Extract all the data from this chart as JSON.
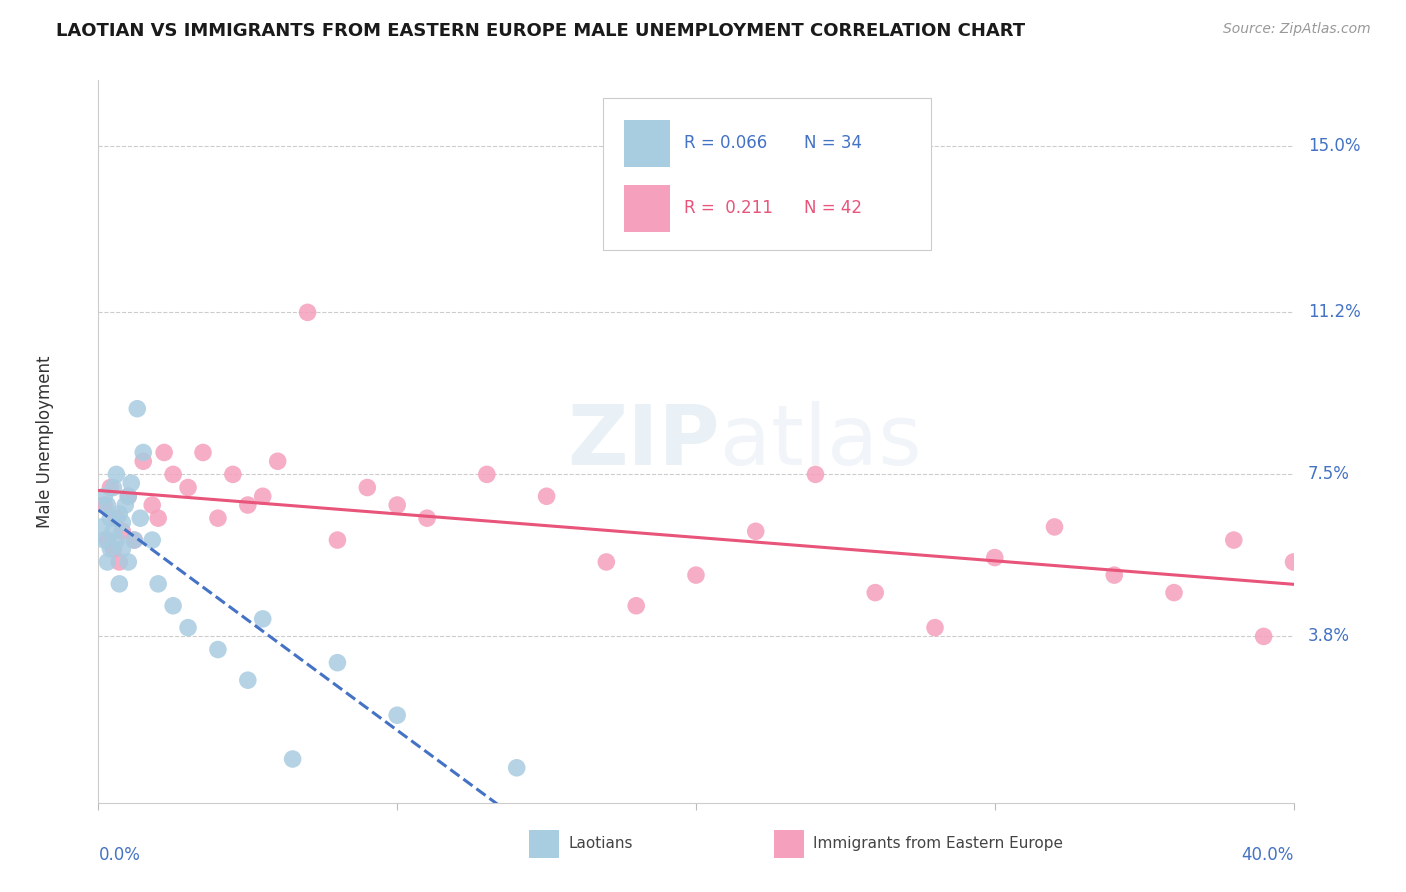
{
  "title": "LAOTIAN VS IMMIGRANTS FROM EASTERN EUROPE MALE UNEMPLOYMENT CORRELATION CHART",
  "source": "Source: ZipAtlas.com",
  "ylabel": "Male Unemployment",
  "ytick_labels": [
    "15.0%",
    "11.2%",
    "7.5%",
    "3.8%"
  ],
  "ytick_values": [
    0.15,
    0.112,
    0.075,
    0.038
  ],
  "xmin": 0.0,
  "xmax": 0.4,
  "ymin": 0.0,
  "ymax": 0.165,
  "legend_r1": "R = 0.066",
  "legend_n1": "N = 34",
  "legend_r2": "R =  0.211",
  "legend_n2": "N = 42",
  "color_blue": "#a8cce0",
  "color_pink": "#f5a0bc",
  "line_blue": "#4472c4",
  "line_pink": "#e8547a",
  "watermark_color": "#dce8f0",
  "laotian_x": [
    0.001,
    0.002,
    0.002,
    0.003,
    0.003,
    0.004,
    0.004,
    0.005,
    0.005,
    0.006,
    0.006,
    0.007,
    0.007,
    0.008,
    0.008,
    0.009,
    0.01,
    0.01,
    0.011,
    0.012,
    0.013,
    0.014,
    0.015,
    0.018,
    0.02,
    0.025,
    0.03,
    0.04,
    0.05,
    0.055,
    0.065,
    0.08,
    0.1,
    0.14
  ],
  "laotian_y": [
    0.063,
    0.07,
    0.06,
    0.068,
    0.055,
    0.065,
    0.058,
    0.072,
    0.062,
    0.075,
    0.06,
    0.066,
    0.05,
    0.058,
    0.064,
    0.068,
    0.07,
    0.055,
    0.073,
    0.06,
    0.09,
    0.065,
    0.08,
    0.06,
    0.05,
    0.045,
    0.04,
    0.035,
    0.028,
    0.042,
    0.01,
    0.032,
    0.02,
    0.008
  ],
  "eastern_x": [
    0.002,
    0.003,
    0.004,
    0.005,
    0.006,
    0.007,
    0.008,
    0.01,
    0.012,
    0.015,
    0.018,
    0.02,
    0.022,
    0.025,
    0.03,
    0.035,
    0.04,
    0.045,
    0.05,
    0.055,
    0.06,
    0.07,
    0.08,
    0.09,
    0.1,
    0.11,
    0.13,
    0.15,
    0.17,
    0.18,
    0.2,
    0.22,
    0.24,
    0.26,
    0.28,
    0.3,
    0.32,
    0.34,
    0.36,
    0.38,
    0.39,
    0.4
  ],
  "eastern_y": [
    0.068,
    0.06,
    0.072,
    0.058,
    0.065,
    0.055,
    0.062,
    0.07,
    0.06,
    0.078,
    0.068,
    0.065,
    0.08,
    0.075,
    0.072,
    0.08,
    0.065,
    0.075,
    0.068,
    0.07,
    0.078,
    0.112,
    0.06,
    0.072,
    0.068,
    0.065,
    0.075,
    0.07,
    0.055,
    0.045,
    0.052,
    0.062,
    0.075,
    0.048,
    0.04,
    0.056,
    0.063,
    0.052,
    0.048,
    0.06,
    0.038,
    0.055
  ]
}
